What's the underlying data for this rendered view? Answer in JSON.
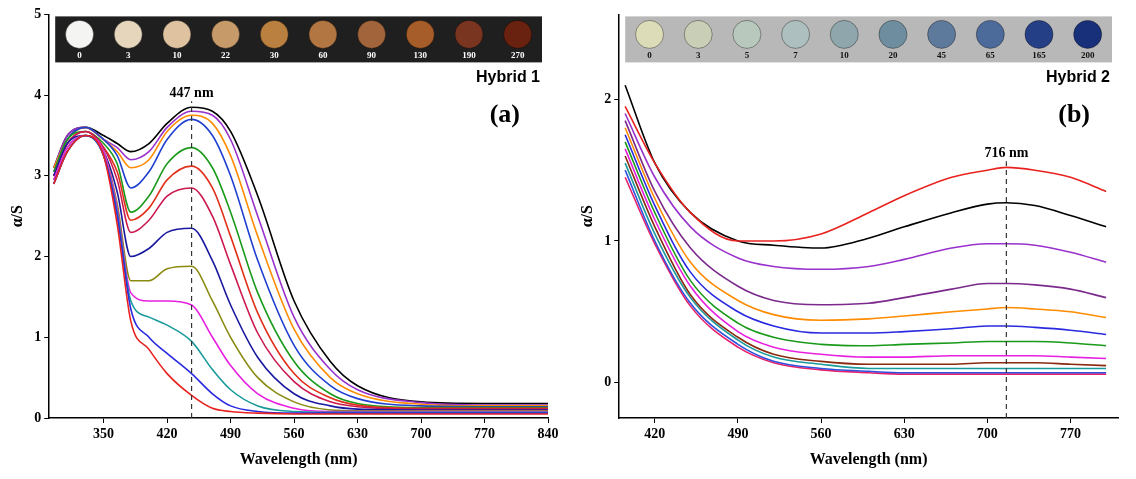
{
  "chart_data": [
    {
      "type": "line",
      "panel_label": "(a)",
      "sample_name": "Hybrid 1",
      "x_label": "Wavelength (nm)",
      "y_label": "α/S",
      "xlim": [
        290,
        840
      ],
      "xticks": [
        350,
        420,
        490,
        560,
        630,
        700,
        770,
        840
      ],
      "ylim": [
        0,
        5
      ],
      "yticks": [
        0,
        1,
        2,
        3,
        4,
        5
      ],
      "grid": false,
      "peak_marker": {
        "x": 447,
        "label": "447 nm"
      },
      "samples": {
        "labels": [
          0,
          3,
          10,
          22,
          30,
          60,
          90,
          130,
          190,
          270
        ],
        "colors": [
          "#f4f4f2",
          "#e6d6bc",
          "#dfc3a0",
          "#c79a6a",
          "#b9803f",
          "#b27642",
          "#a2643a",
          "#a65d2a",
          "#7a3520",
          "#6a2210"
        ]
      },
      "x": [
        295,
        310,
        330,
        350,
        365,
        380,
        400,
        420,
        447,
        470,
        490,
        520,
        560,
        600,
        630,
        700,
        770,
        840
      ],
      "series": [
        {
          "color": "#e8231f",
          "values": [
            2.9,
            3.3,
            3.5,
            3.25,
            2.4,
            1.2,
            0.85,
            0.55,
            0.28,
            0.12,
            0.08,
            0.06,
            0.05,
            0.05,
            0.05,
            0.05,
            0.05,
            0.05
          ]
        },
        {
          "color": "#2a2ae0",
          "values": [
            2.9,
            3.3,
            3.5,
            3.25,
            2.5,
            1.35,
            1.0,
            0.8,
            0.55,
            0.3,
            0.15,
            0.08,
            0.06,
            0.06,
            0.06,
            0.06,
            0.06,
            0.06
          ]
        },
        {
          "color": "#1a9a9a",
          "values": [
            2.9,
            3.3,
            3.5,
            3.25,
            2.55,
            1.45,
            1.25,
            1.15,
            0.95,
            0.6,
            0.35,
            0.15,
            0.08,
            0.07,
            0.07,
            0.07,
            0.07,
            0.07
          ]
        },
        {
          "color": "#e820e0",
          "values": [
            2.95,
            3.35,
            3.5,
            3.3,
            2.6,
            1.55,
            1.45,
            1.45,
            1.4,
            1.0,
            0.65,
            0.3,
            0.12,
            0.08,
            0.08,
            0.08,
            0.08,
            0.08
          ]
        },
        {
          "color": "#8a8a10",
          "values": [
            2.95,
            3.35,
            3.5,
            3.3,
            2.65,
            1.7,
            1.7,
            1.85,
            1.88,
            1.45,
            1.0,
            0.5,
            0.2,
            0.1,
            0.09,
            0.09,
            0.09,
            0.09
          ]
        },
        {
          "color": "#1a1aa0",
          "values": [
            3.0,
            3.4,
            3.5,
            3.3,
            2.8,
            2.0,
            2.1,
            2.3,
            2.35,
            1.95,
            1.4,
            0.75,
            0.3,
            0.15,
            0.11,
            0.1,
            0.1,
            0.1
          ]
        },
        {
          "color": "#cc1a50",
          "values": [
            3.0,
            3.4,
            3.55,
            3.35,
            2.95,
            2.3,
            2.45,
            2.75,
            2.85,
            2.5,
            1.9,
            1.05,
            0.45,
            0.2,
            0.14,
            0.11,
            0.11,
            0.11
          ]
        },
        {
          "color": "#e0301a",
          "values": [
            3.0,
            3.4,
            3.55,
            3.35,
            3.05,
            2.45,
            2.6,
            2.95,
            3.12,
            2.85,
            2.25,
            1.3,
            0.55,
            0.25,
            0.16,
            0.12,
            0.12,
            0.12
          ]
        },
        {
          "color": "#1a9a1a",
          "values": [
            3.05,
            3.45,
            3.55,
            3.4,
            3.15,
            2.55,
            2.75,
            3.15,
            3.35,
            3.1,
            2.55,
            1.55,
            0.7,
            0.3,
            0.18,
            0.13,
            0.13,
            0.13
          ]
        },
        {
          "color": "#2040d0",
          "values": [
            3.05,
            3.45,
            3.6,
            3.45,
            3.25,
            2.85,
            3.05,
            3.45,
            3.7,
            3.5,
            3.0,
            1.95,
            0.9,
            0.4,
            0.24,
            0.15,
            0.14,
            0.14
          ]
        },
        {
          "color": "#ff8c00",
          "values": [
            3.1,
            3.45,
            3.6,
            3.45,
            3.3,
            3.1,
            3.2,
            3.55,
            3.75,
            3.65,
            3.25,
            2.25,
            1.1,
            0.5,
            0.3,
            0.17,
            0.15,
            0.15
          ]
        },
        {
          "color": "#9932cc",
          "values": [
            3.1,
            3.5,
            3.6,
            3.45,
            3.35,
            3.2,
            3.3,
            3.6,
            3.8,
            3.75,
            3.45,
            2.5,
            1.25,
            0.6,
            0.35,
            0.19,
            0.16,
            0.16
          ]
        },
        {
          "color": "#000000",
          "values": [
            3.1,
            3.5,
            3.6,
            3.5,
            3.4,
            3.3,
            3.4,
            3.65,
            3.85,
            3.8,
            3.55,
            2.75,
            1.45,
            0.7,
            0.4,
            0.2,
            0.18,
            0.18
          ]
        }
      ]
    },
    {
      "type": "line",
      "panel_label": "(b)",
      "sample_name": "Hybrid 2",
      "x_label": "Wavelength (nm)",
      "y_label": "α/S",
      "xlim": [
        390,
        810
      ],
      "xticks": [
        420,
        490,
        560,
        630,
        700,
        770
      ],
      "ylim": [
        -0.25,
        2.6
      ],
      "yticks": [
        0,
        1,
        2
      ],
      "grid": false,
      "peak_marker": {
        "x": 716,
        "label": "716 nm"
      },
      "samples": {
        "labels": [
          0,
          3,
          5,
          7,
          10,
          20,
          45,
          65,
          165,
          200
        ],
        "colors": [
          "#dcdcb8",
          "#c9cfb6",
          "#b9c8bd",
          "#adbfbf",
          "#8fa6ac",
          "#6e8ea0",
          "#5d7a9c",
          "#4d6b9a",
          "#253f86",
          "#18307a"
        ]
      },
      "x": [
        395,
        420,
        450,
        490,
        520,
        560,
        600,
        630,
        670,
        700,
        716,
        740,
        770,
        800
      ],
      "series": [
        {
          "color": "#e8231f",
          "values": [
            1.95,
            1.55,
            1.2,
            1.0,
            1.0,
            1.05,
            1.2,
            1.32,
            1.45,
            1.5,
            1.52,
            1.5,
            1.45,
            1.35
          ]
        },
        {
          "color": "#000000",
          "values": [
            2.1,
            1.55,
            1.2,
            1.0,
            0.97,
            0.95,
            1.02,
            1.1,
            1.2,
            1.26,
            1.27,
            1.25,
            1.18,
            1.1
          ]
        },
        {
          "color": "#9932cc",
          "values": [
            1.9,
            1.45,
            1.1,
            0.88,
            0.82,
            0.8,
            0.82,
            0.87,
            0.95,
            0.98,
            0.98,
            0.97,
            0.92,
            0.85
          ]
        },
        {
          "color": "#7b2a8c",
          "values": [
            1.85,
            1.35,
            0.95,
            0.68,
            0.58,
            0.55,
            0.56,
            0.6,
            0.66,
            0.7,
            0.7,
            0.69,
            0.66,
            0.6
          ]
        },
        {
          "color": "#ff8c00",
          "values": [
            1.8,
            1.3,
            0.85,
            0.58,
            0.48,
            0.44,
            0.45,
            0.47,
            0.5,
            0.52,
            0.53,
            0.52,
            0.5,
            0.46
          ]
        },
        {
          "color": "#2a2ae0",
          "values": [
            1.75,
            1.25,
            0.78,
            0.5,
            0.4,
            0.35,
            0.35,
            0.36,
            0.38,
            0.4,
            0.4,
            0.39,
            0.37,
            0.34
          ]
        },
        {
          "color": "#1a9a1a",
          "values": [
            1.7,
            1.2,
            0.72,
            0.42,
            0.32,
            0.27,
            0.26,
            0.27,
            0.28,
            0.29,
            0.29,
            0.29,
            0.28,
            0.26
          ]
        },
        {
          "color": "#e820e0",
          "values": [
            1.65,
            1.15,
            0.68,
            0.36,
            0.25,
            0.2,
            0.18,
            0.18,
            0.19,
            0.19,
            0.19,
            0.19,
            0.18,
            0.17
          ]
        },
        {
          "color": "#8a2a10",
          "values": [
            1.6,
            1.1,
            0.62,
            0.32,
            0.2,
            0.15,
            0.13,
            0.13,
            0.13,
            0.14,
            0.14,
            0.14,
            0.13,
            0.12
          ]
        },
        {
          "color": "#1a9a9a",
          "values": [
            1.55,
            1.05,
            0.6,
            0.3,
            0.18,
            0.13,
            0.1,
            0.1,
            0.1,
            0.1,
            0.1,
            0.1,
            0.1,
            0.1
          ]
        },
        {
          "color": "#3050e0",
          "values": [
            1.5,
            1.0,
            0.56,
            0.27,
            0.15,
            0.1,
            0.08,
            0.07,
            0.07,
            0.07,
            0.07,
            0.07,
            0.07,
            0.07
          ]
        },
        {
          "color": "#e8206a",
          "values": [
            1.45,
            0.98,
            0.54,
            0.25,
            0.14,
            0.09,
            0.07,
            0.06,
            0.06,
            0.06,
            0.06,
            0.06,
            0.06,
            0.06
          ]
        }
      ]
    }
  ]
}
